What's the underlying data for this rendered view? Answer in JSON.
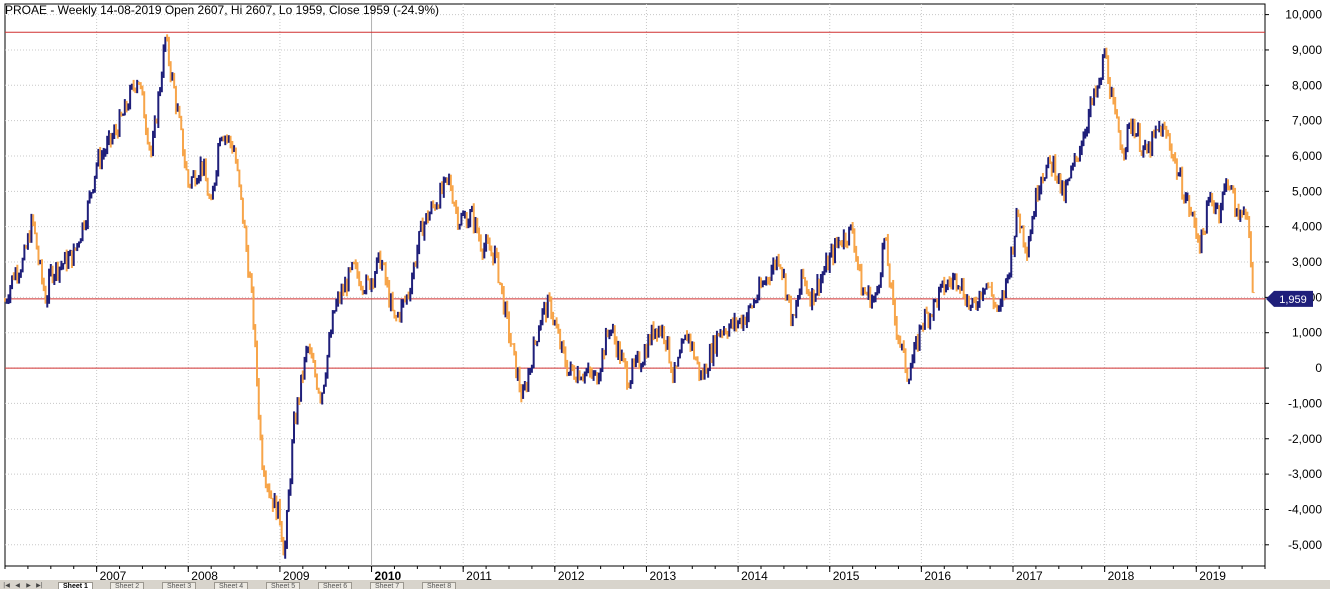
{
  "header": {
    "title": "PROAE - Weekly 14-08-2019 Open 2607, Hi 2607, Lo 1959, Close 1959 (-24.9%)"
  },
  "chart_data": {
    "type": "candlestick",
    "title": "PROAE - Weekly 14-08-2019 Open 2607, Hi 2607, Lo 1959, Close 1959 (-24.9%)",
    "xlabel": "",
    "ylabel": "",
    "x_ticks": [
      "2007",
      "2008",
      "2009",
      "2010",
      "2011",
      "2012",
      "2013",
      "2014",
      "2015",
      "2016",
      "2017",
      "2018",
      "2019"
    ],
    "x_range": [
      2006.0,
      2019.75
    ],
    "y_ticks": [
      -5000,
      -4000,
      -3000,
      -2000,
      -1000,
      0,
      1000,
      2000,
      3000,
      4000,
      5000,
      6000,
      7000,
      8000,
      9000,
      10000
    ],
    "y_tick_labels": [
      "-5,000",
      "-4,000",
      "-3,000",
      "-2,000",
      "-1,000",
      "0",
      "1,000",
      "2,000",
      "3,000",
      "4,000",
      "5,000",
      "6,000",
      "7,000",
      "8,000",
      "9,000",
      "10,000"
    ],
    "ylim": [
      -5600,
      10300
    ],
    "grid": true,
    "reference_lines": [
      9500,
      1959,
      0
    ],
    "last_value": 1959,
    "last_value_label": "1,959",
    "colors": {
      "up": "#1f1f7a",
      "down": "#f7a54a",
      "hline": "#d03030",
      "badge": "#1f1f7a",
      "grid": "#c8c8c8"
    },
    "series": [
      {
        "x": [
          2006.0,
          2006.1,
          2006.2,
          2006.3,
          2006.38,
          2006.45,
          2006.5,
          2006.6,
          2006.75,
          2006.9,
          2007.0,
          2007.15,
          2007.3,
          2007.45,
          2007.6,
          2007.75,
          2007.85,
          2008.0,
          2008.15,
          2008.25,
          2008.35,
          2008.5,
          2008.6,
          2008.7,
          2008.8,
          2008.9,
          2009.0,
          2009.05,
          2009.15,
          2009.3,
          2009.45,
          2009.6,
          2009.8,
          2009.95,
          2010.1,
          2010.25,
          2010.4,
          2010.55,
          2010.7,
          2010.85,
          2010.95,
          2011.1,
          2011.2,
          2011.35,
          2011.45,
          2011.55,
          2011.65,
          2011.75,
          2011.85,
          2011.95,
          2012.05,
          2012.15,
          2012.3,
          2012.45,
          2012.6,
          2012.8,
          2012.95,
          2013.1,
          2013.2,
          2013.3,
          2013.45,
          2013.6,
          2013.8,
          2013.95,
          2014.1,
          2014.3,
          2014.45,
          2014.6,
          2014.7,
          2014.8,
          2014.95,
          2015.1,
          2015.25,
          2015.35,
          2015.5,
          2015.6,
          2015.7,
          2015.85,
          2015.95,
          2016.0,
          2016.1,
          2016.25,
          2016.4,
          2016.55,
          2016.7,
          2016.85,
          2016.95,
          2017.05,
          2017.15,
          2017.3,
          2017.45,
          2017.55,
          2017.7,
          2017.85,
          2017.95,
          2018.0,
          2018.1,
          2018.2,
          2018.3,
          2018.45,
          2018.6,
          2018.7,
          2018.8,
          2018.95,
          2019.05,
          2019.15,
          2019.25,
          2019.35,
          2019.45,
          2019.52,
          2019.58,
          2019.62
        ],
        "close": [
          1900,
          2700,
          3000,
          4200,
          2800,
          1900,
          2700,
          2900,
          3200,
          4500,
          5800,
          6400,
          7200,
          8300,
          6000,
          9300,
          7800,
          5200,
          5800,
          4500,
          6800,
          6200,
          4200,
          1800,
          -2500,
          -3600,
          -4200,
          -5300,
          -1700,
          600,
          -800,
          1700,
          2800,
          2300,
          3100,
          1300,
          2100,
          4000,
          4700,
          5300,
          4200,
          4300,
          3500,
          3200,
          1700,
          300,
          -900,
          300,
          1500,
          1800,
          700,
          -100,
          -100,
          -300,
          1200,
          -300,
          300,
          1200,
          1000,
          -300,
          1000,
          -300,
          1100,
          1200,
          1500,
          2500,
          3200,
          1200,
          2600,
          2000,
          2800,
          3600,
          3900,
          2200,
          1900,
          3700,
          1500,
          -200,
          600,
          1300,
          1600,
          2300,
          2600,
          1600,
          2500,
          1500,
          2700,
          4400,
          3400,
          5500,
          5800,
          4800,
          6000,
          7400,
          8000,
          9000,
          7200,
          6200,
          7000,
          6000,
          6800,
          6500,
          5500,
          4300,
          3500,
          4800,
          4500,
          5400,
          4200,
          4700,
          3500,
          1959
        ]
      }
    ]
  },
  "sheet_tabs": {
    "active": "Sheet 1",
    "labels": [
      "Sheet 1",
      "Sheet 2",
      "Sheet 3",
      "Sheet 4",
      "Sheet 5",
      "Sheet 6",
      "Sheet 7",
      "Sheet 8"
    ]
  }
}
